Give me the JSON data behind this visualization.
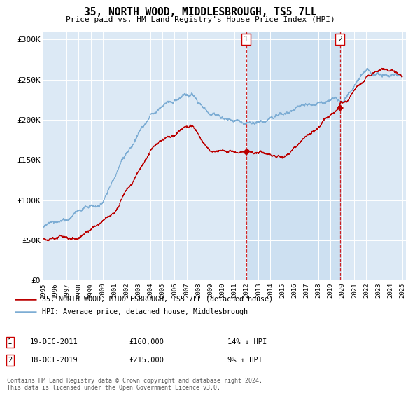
{
  "title": "35, NORTH WOOD, MIDDLESBROUGH, TS5 7LL",
  "subtitle": "Price paid vs. HM Land Registry's House Price Index (HPI)",
  "ylim": [
    0,
    310000
  ],
  "yticks": [
    0,
    50000,
    100000,
    150000,
    200000,
    250000,
    300000
  ],
  "ytick_labels": [
    "£0",
    "£50K",
    "£100K",
    "£150K",
    "£200K",
    "£250K",
    "£300K"
  ],
  "property_color": "#bb0000",
  "hpi_color": "#7dadd4",
  "background_color": "#dce9f5",
  "shade_color": "#c8ddf0",
  "annotation1": {
    "label": "1",
    "date": "19-DEC-2011",
    "price": "£160,000",
    "hpi_rel": "14% ↓ HPI"
  },
  "annotation2": {
    "label": "2",
    "date": "18-OCT-2019",
    "price": "£215,000",
    "hpi_rel": "9% ↑ HPI"
  },
  "legend_line1": "35, NORTH WOOD, MIDDLESBROUGH, TS5 7LL (detached house)",
  "legend_line2": "HPI: Average price, detached house, Middlesbrough",
  "footer": "Contains HM Land Registry data © Crown copyright and database right 2024.\nThis data is licensed under the Open Government Licence v3.0.",
  "transaction1_year": 2011.97,
  "transaction1_value": 160000,
  "transaction2_year": 2019.8,
  "transaction2_value": 215000
}
